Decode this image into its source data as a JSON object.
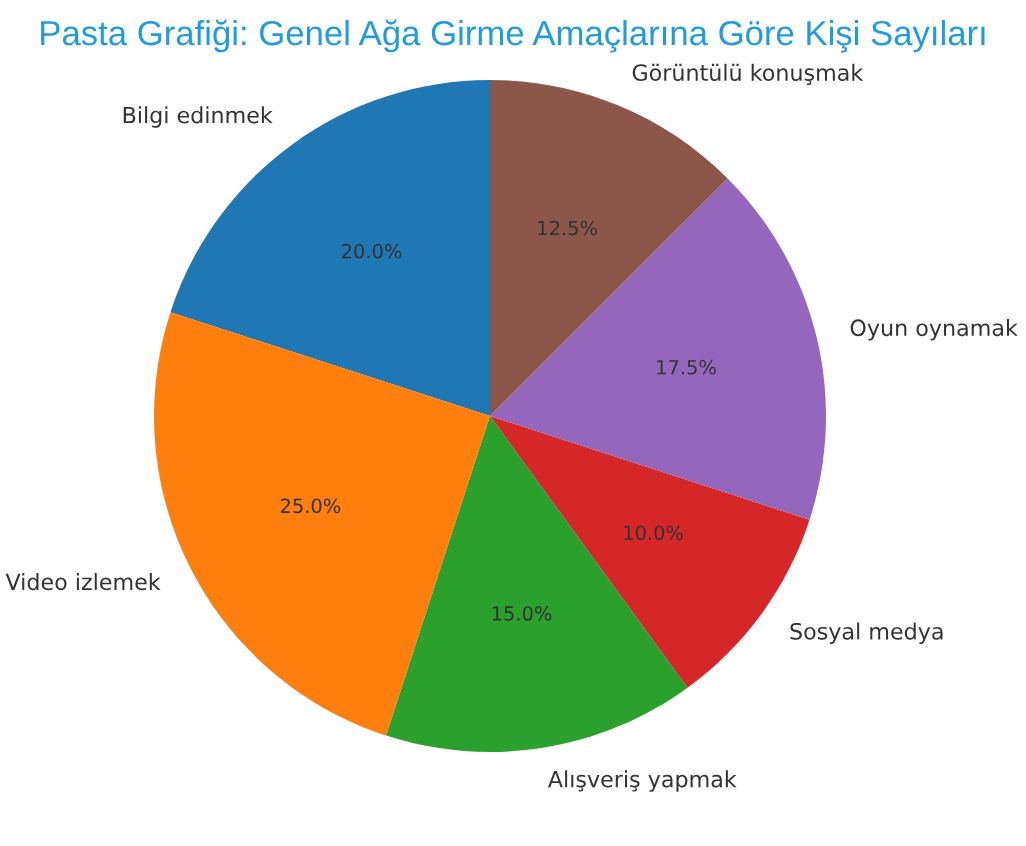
{
  "chart_data": {
    "type": "pie",
    "title": "Pasta Grafiği: Genel Ağa Girme Amaçlarına Göre Kişi Sayıları",
    "categories": [
      "Bilgi edinmek",
      "Video izlemek",
      "Alışveriş yapmak",
      "Sosyal medya",
      "Oyun oynamak",
      "Görüntülü konuşmak"
    ],
    "values": [
      20,
      25,
      15,
      10,
      17.5,
      12.5
    ],
    "colors": [
      "#1f77b4",
      "#ff7f0e",
      "#2ca02c",
      "#d62728",
      "#9467bd",
      "#8c564b"
    ],
    "value_labels": [
      "20.0%",
      "25.0%",
      "15.0%",
      "10.0%",
      "17.5%",
      "12.5%"
    ]
  }
}
